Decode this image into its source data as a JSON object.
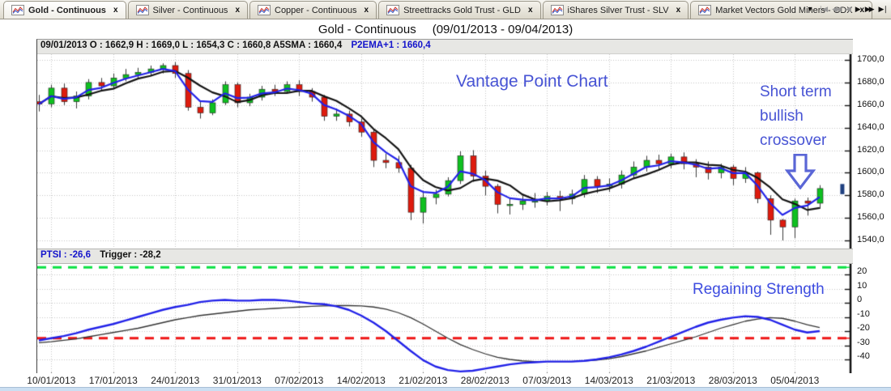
{
  "tabs": [
    {
      "label": "Gold -  Continuous",
      "active": true
    },
    {
      "label": "Silver -  Continuous",
      "active": false
    },
    {
      "label": "Copper -  Continuous",
      "active": false
    },
    {
      "label": "Streettracks Gold Trust -  GLD",
      "active": false
    },
    {
      "label": "iShares Silver Trust -  SLV",
      "active": false
    },
    {
      "label": "Market Vectors Gold Miners -  GDX",
      "active": false
    }
  ],
  "tab_close_glyph": "x",
  "tab_nav": [
    {
      "name": "dropdown-icon",
      "glyph": "▼",
      "enabled": true
    },
    {
      "name": "skip-first-icon",
      "glyph": "❘◀",
      "enabled": false
    },
    {
      "name": "fast-back-icon",
      "glyph": "◀◀",
      "enabled": false
    },
    {
      "name": "back-icon",
      "glyph": "◀",
      "enabled": false
    },
    {
      "name": "forward-icon",
      "glyph": "▶",
      "enabled": true
    },
    {
      "name": "fast-forward-icon",
      "glyph": "▶▶",
      "enabled": true
    },
    {
      "name": "skip-last-icon",
      "glyph": "▶❘",
      "enabled": true
    }
  ],
  "title": {
    "symbol": "Gold -  Continuous",
    "range": "(09/01/2013 - 09/04/2013)"
  },
  "info_bar": {
    "ohlc": "09/01/2013 O : 1662,9 H : 1669,0 L : 1654,3 C : 1660,8  A5SMA : 1660,4",
    "p2ema": "P2EMA+1 : 1660,4"
  },
  "indicator_bar": {
    "ptsi": "PTSI : -26,6",
    "trigger": "Trigger : -28,2"
  },
  "annotations": {
    "center": "Vantage Point Chart",
    "right_lines": [
      "Short term",
      "bullish",
      "crossover"
    ],
    "lower": "Regaining Strength"
  },
  "colors": {
    "up_candle": "#0fc020",
    "down_candle": "#de1b0e",
    "wick": "#3a3a3a",
    "sma_line": "#141414",
    "ema_line": "#2222e8",
    "predicted_bar": "#1f4080",
    "upper_threshold": "#0ae143",
    "lower_threshold": "#ef1515",
    "grid": "#c4c4c4",
    "axis": "#111111",
    "annotation_blue": "#4753d4"
  },
  "chart_data": {
    "type": "candlestick",
    "title": "Gold - Continuous",
    "date_range": "09/01/2013 - 09/04/2013",
    "x_labels": [
      "10/01/2013",
      "17/01/2013",
      "24/01/2013",
      "31/01/2013",
      "07/02/2013",
      "14/02/2013",
      "21/02/2013",
      "28/02/2013",
      "07/03/2013",
      "14/03/2013",
      "21/03/2013",
      "28/03/2013",
      "05/04/2013"
    ],
    "x_label_indices": [
      1,
      6,
      11,
      16,
      21,
      26,
      31,
      36,
      41,
      46,
      51,
      56,
      61
    ],
    "y_ticks_price": [
      1700,
      1680,
      1660,
      1640,
      1620,
      1600,
      1580,
      1560,
      1540
    ],
    "price_ylim": [
      1532,
      1705
    ],
    "overlays": [
      {
        "name": "A5SMA",
        "value_at_info_date": "1660,4"
      },
      {
        "name": "P2EMA+1",
        "value_at_info_date": "1660,4"
      }
    ],
    "candles_format": [
      "date",
      "open",
      "high",
      "low",
      "close"
    ],
    "candles": [
      [
        "09/01",
        1662.9,
        1669.0,
        1654.3,
        1660.8
      ],
      [
        "10/01",
        1661,
        1678,
        1658,
        1675
      ],
      [
        "11/01",
        1675,
        1679,
        1660,
        1663
      ],
      [
        "14/01",
        1663,
        1672,
        1657,
        1668
      ],
      [
        "15/01",
        1668,
        1683,
        1665,
        1680
      ],
      [
        "16/01",
        1680,
        1684,
        1673,
        1677
      ],
      [
        "17/01",
        1677,
        1688,
        1674,
        1684
      ],
      [
        "18/01",
        1684,
        1692,
        1681,
        1687
      ],
      [
        "21/01",
        1687,
        1693,
        1683,
        1689
      ],
      [
        "22/01",
        1689,
        1695,
        1686,
        1692
      ],
      [
        "23/01",
        1692,
        1697,
        1688,
        1695
      ],
      [
        "24/01",
        1695,
        1698,
        1684,
        1688
      ],
      [
        "25/01",
        1688,
        1691,
        1655,
        1658
      ],
      [
        "28/01",
        1658,
        1663,
        1648,
        1653
      ],
      [
        "29/01",
        1653,
        1665,
        1651,
        1662
      ],
      [
        "30/01",
        1662,
        1681,
        1660,
        1678
      ],
      [
        "31/01",
        1678,
        1680,
        1658,
        1662
      ],
      [
        "01/02",
        1662,
        1670,
        1659,
        1667
      ],
      [
        "04/02",
        1667,
        1677,
        1664,
        1674
      ],
      [
        "05/02",
        1674,
        1678,
        1668,
        1672
      ],
      [
        "06/02",
        1672,
        1681,
        1670,
        1678
      ],
      [
        "07/02",
        1678,
        1682,
        1668,
        1672
      ],
      [
        "08/02",
        1672,
        1675,
        1663,
        1667
      ],
      [
        "11/02",
        1667,
        1669,
        1646,
        1650
      ],
      [
        "12/02",
        1650,
        1657,
        1646,
        1652
      ],
      [
        "13/02",
        1652,
        1655,
        1641,
        1645
      ],
      [
        "14/02",
        1645,
        1648,
        1632,
        1636
      ],
      [
        "15/02",
        1636,
        1638,
        1605,
        1611
      ],
      [
        "18/02",
        1611,
        1617,
        1604,
        1609
      ],
      [
        "19/02",
        1609,
        1615,
        1600,
        1604
      ],
      [
        "20/02",
        1604,
        1607,
        1558,
        1565
      ],
      [
        "21/02",
        1565,
        1584,
        1555,
        1578
      ],
      [
        "22/02",
        1578,
        1585,
        1572,
        1581
      ],
      [
        "25/02",
        1581,
        1596,
        1579,
        1593
      ],
      [
        "26/02",
        1593,
        1619,
        1590,
        1615
      ],
      [
        "27/02",
        1615,
        1620,
        1592,
        1597
      ],
      [
        "28/02",
        1597,
        1602,
        1580,
        1588
      ],
      [
        "01/03",
        1588,
        1590,
        1564,
        1572
      ],
      [
        "04/03",
        1572,
        1578,
        1563,
        1572
      ],
      [
        "05/03",
        1572,
        1580,
        1567,
        1575
      ],
      [
        "06/03",
        1575,
        1582,
        1569,
        1575
      ],
      [
        "07/03",
        1575,
        1583,
        1571,
        1579
      ],
      [
        "08/03",
        1579,
        1584,
        1566,
        1577
      ],
      [
        "11/03",
        1577,
        1585,
        1572,
        1581
      ],
      [
        "12/03",
        1581,
        1598,
        1578,
        1594
      ],
      [
        "13/03",
        1594,
        1597,
        1582,
        1588
      ],
      [
        "14/03",
        1588,
        1595,
        1583,
        1590
      ],
      [
        "15/03",
        1590,
        1602,
        1586,
        1598
      ],
      [
        "18/03",
        1598,
        1610,
        1595,
        1605
      ],
      [
        "19/03",
        1605,
        1615,
        1601,
        1611
      ],
      [
        "20/03",
        1611,
        1616,
        1602,
        1608
      ],
      [
        "21/03",
        1608,
        1617,
        1604,
        1614
      ],
      [
        "22/03",
        1614,
        1618,
        1603,
        1608
      ],
      [
        "25/03",
        1608,
        1612,
        1596,
        1605
      ],
      [
        "26/03",
        1605,
        1610,
        1594,
        1600
      ],
      [
        "27/03",
        1600,
        1608,
        1595,
        1605
      ],
      [
        "28/03",
        1605,
        1607,
        1589,
        1595
      ],
      [
        "01/04",
        1595,
        1605,
        1591,
        1600
      ],
      [
        "02/04",
        1600,
        1601,
        1573,
        1577
      ],
      [
        "03/04",
        1577,
        1580,
        1545,
        1558
      ],
      [
        "04/04",
        1558,
        1559,
        1540,
        1552
      ],
      [
        "05/04",
        1552,
        1577,
        1542,
        1575
      ],
      [
        "08/04",
        1575,
        1578,
        1562,
        1573
      ],
      [
        "09/04",
        1573,
        1589,
        1568,
        1586
      ]
    ],
    "predicted_bar": {
      "high": 1590,
      "low": 1581
    },
    "indicator": {
      "name": "PTSI",
      "y_ticks": [
        20,
        10,
        0,
        -10,
        -20,
        -30,
        -40
      ],
      "ylim": [
        -51,
        28
      ],
      "upper_threshold": 25,
      "lower_threshold": -25,
      "ptsi": [
        -26.6,
        -25,
        -23.5,
        -21.5,
        -19,
        -17,
        -15,
        -12.5,
        -10,
        -7.5,
        -5,
        -3,
        -1.5,
        0.5,
        1.5,
        2,
        1.5,
        1.5,
        2,
        2,
        1.5,
        0.5,
        -0.5,
        -1,
        -2.5,
        -5,
        -9,
        -14,
        -20,
        -27,
        -34,
        -40.5,
        -45,
        -47.5,
        -48.5,
        -48,
        -46.5,
        -45,
        -43.5,
        -42.5,
        -42,
        -41.5,
        -41.5,
        -41.5,
        -41,
        -40,
        -38.5,
        -36.5,
        -34,
        -31,
        -27.5,
        -24,
        -20.5,
        -17,
        -14,
        -12,
        -10.5,
        -9.5,
        -10,
        -12,
        -15.5,
        -19,
        -21,
        -20
      ],
      "trigger": [
        -28.2,
        -27.5,
        -26.5,
        -25.5,
        -24,
        -22.5,
        -21,
        -19.5,
        -18,
        -16,
        -14,
        -12,
        -10.5,
        -9,
        -8,
        -7,
        -6,
        -5,
        -4.5,
        -4,
        -3.5,
        -3,
        -2.5,
        -2.2,
        -2,
        -2,
        -2.2,
        -3,
        -4.5,
        -7,
        -10.5,
        -15,
        -20,
        -25,
        -29.5,
        -33,
        -36,
        -38.5,
        -40,
        -41,
        -41.5,
        -41.5,
        -41.5,
        -41.5,
        -41,
        -40.5,
        -39.5,
        -38,
        -36,
        -34,
        -31.5,
        -29,
        -26.5,
        -24,
        -21,
        -18,
        -15.5,
        -13,
        -11.5,
        -10.5,
        -11,
        -13,
        -15.5,
        -17.5
      ]
    }
  }
}
